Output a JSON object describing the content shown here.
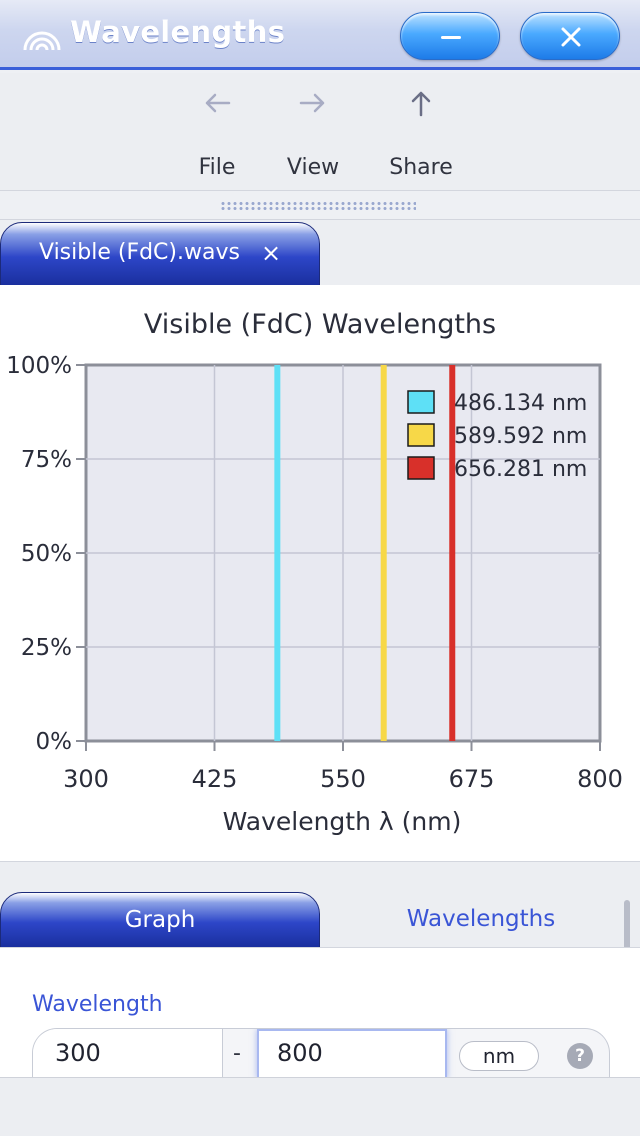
{
  "window": {
    "title": "Wavelengths",
    "app_icon": "rainbow-arc-icon",
    "buttons": {
      "minimize": "minimize-icon",
      "close": "close-icon"
    }
  },
  "toolbar": {
    "items": [
      {
        "label": "File",
        "icon": "arrow-left-icon"
      },
      {
        "label": "View",
        "icon": "arrow-right-icon"
      },
      {
        "label": "Share",
        "icon": "arrow-up-icon"
      }
    ]
  },
  "document_tab": {
    "label": "Visible (FdC).wavs",
    "close": "×"
  },
  "chart_data": {
    "type": "bar",
    "title": "Visible (FdC) Wavelengths",
    "xlabel": "Wavelength λ (nm)",
    "ylabel": "",
    "xlim": [
      300,
      800
    ],
    "ylim": [
      0,
      100
    ],
    "x_ticks": [
      "300",
      "425",
      "550",
      "675",
      "800"
    ],
    "y_ticks": [
      "0%",
      "25%",
      "50%",
      "75%",
      "100%"
    ],
    "grid": true,
    "legend_position": "top-right",
    "series": [
      {
        "name": "486.134 nm",
        "x": 486.134,
        "value": 100,
        "color": "#5ee0f6"
      },
      {
        "name": "589.592 nm",
        "x": 589.592,
        "value": 100,
        "color": "#f7d848"
      },
      {
        "name": "656.281 nm",
        "x": 656.281,
        "value": 100,
        "color": "#d8302a"
      }
    ]
  },
  "bottom_tabs": {
    "graph": "Graph",
    "wavelengths": "Wavelengths"
  },
  "form": {
    "label": "Wavelength",
    "min_value": "300",
    "max_value": "800",
    "separator": "-",
    "unit": "nm",
    "help": "?"
  },
  "colors": {
    "accent": "#3a55d6",
    "tab_dark": "#1a2f9e",
    "plot_bg": "#e8e9f1"
  }
}
